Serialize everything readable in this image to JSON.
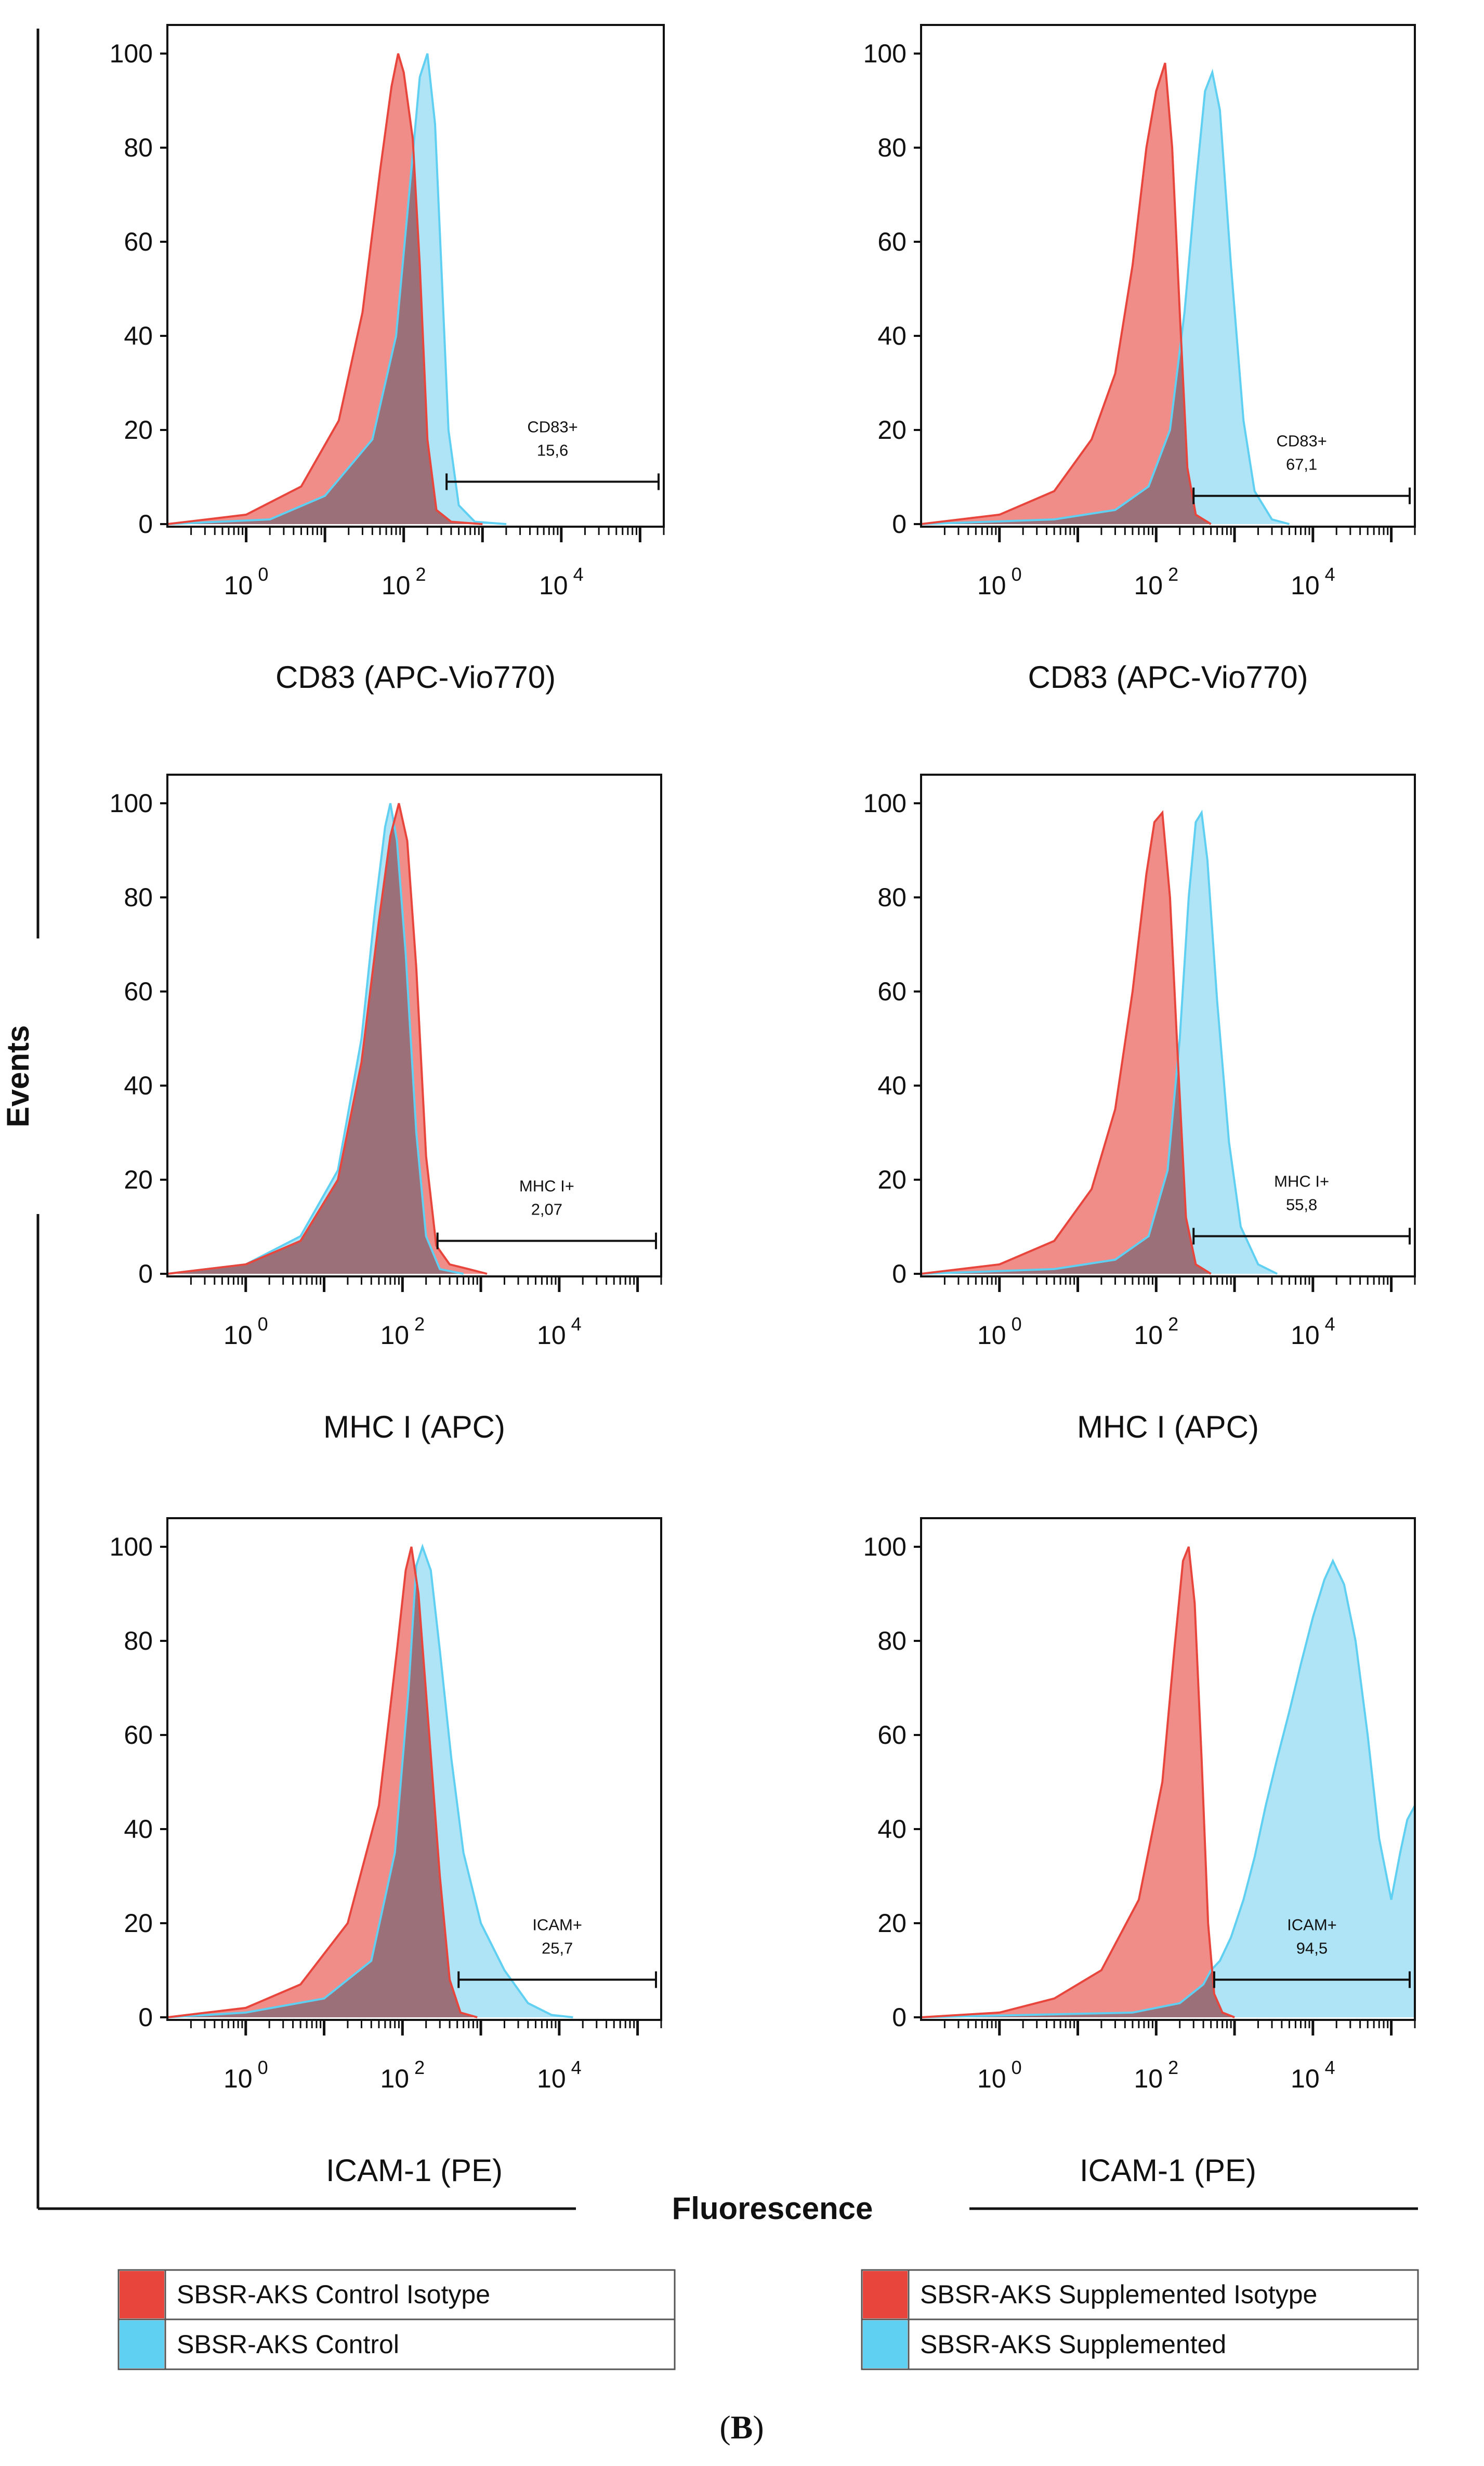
{
  "figure": {
    "y_title": "Events",
    "x_title": "Fluorescence",
    "panel_label_prefix": "(",
    "panel_label_letter": "B",
    "panel_label_suffix": ")"
  },
  "legends": [
    {
      "entries": [
        {
          "label": "SBSR-AKS Control Isotype",
          "color": "#e8453c"
        },
        {
          "label": "SBSR-AKS Control",
          "color": "#5fcff2"
        }
      ]
    },
    {
      "entries": [
        {
          "label": "SBSR-AKS Supplemented Isotype",
          "color": "#e8453c"
        },
        {
          "label": "SBSR-AKS Supplemented",
          "color": "#5fcff2"
        }
      ]
    }
  ],
  "styles": {
    "isotype_fill": "#f08d88",
    "isotype_line": "#e8453c",
    "sample_fill": "#aee4f6",
    "sample_line": "#5fcff2",
    "overlap_fill": "#9c7079"
  },
  "chart_data": [
    {
      "type": "area",
      "xlabel": "CD83 (APC-Vio770)",
      "x_scale": "log",
      "xlim": [
        0.1,
        200000
      ],
      "ylim": [
        0,
        100
      ],
      "y_ticks": [
        0,
        20,
        40,
        60,
        80,
        100
      ],
      "x_tick_bases": [
        "10",
        "10",
        "10"
      ],
      "x_tick_exponents": [
        "0",
        "2",
        "4"
      ],
      "x_tick_values": [
        1,
        100,
        10000
      ],
      "gate": {
        "label": "CD83+",
        "value": "15,6",
        "from": 350,
        "to": 200000,
        "y": 9
      },
      "series": [
        {
          "name": "SBSR-AKS Control Isotype",
          "role": "isotype",
          "points": [
            [
              0.1,
              0
            ],
            [
              1,
              2
            ],
            [
              5,
              8
            ],
            [
              15,
              22
            ],
            [
              30,
              45
            ],
            [
              50,
              75
            ],
            [
              70,
              93
            ],
            [
              85,
              100
            ],
            [
              100,
              96
            ],
            [
              130,
              82
            ],
            [
              160,
              55
            ],
            [
              200,
              18
            ],
            [
              260,
              3
            ],
            [
              400,
              0.5
            ],
            [
              1000,
              0
            ]
          ]
        },
        {
          "name": "SBSR-AKS Control",
          "role": "sample",
          "points": [
            [
              0.1,
              0
            ],
            [
              2,
              1
            ],
            [
              10,
              6
            ],
            [
              40,
              18
            ],
            [
              80,
              40
            ],
            [
              120,
              72
            ],
            [
              160,
              95
            ],
            [
              200,
              100
            ],
            [
              250,
              85
            ],
            [
              300,
              55
            ],
            [
              370,
              20
            ],
            [
              500,
              4
            ],
            [
              800,
              0.5
            ],
            [
              2000,
              0
            ]
          ]
        }
      ]
    },
    {
      "type": "area",
      "xlabel": "CD83 (APC-Vio770)",
      "x_scale": "log",
      "xlim": [
        0.1,
        200000
      ],
      "ylim": [
        0,
        100
      ],
      "y_ticks": [
        0,
        20,
        40,
        60,
        80,
        100
      ],
      "x_tick_bases": [
        "10",
        "10",
        "10"
      ],
      "x_tick_exponents": [
        "0",
        "2",
        "4"
      ],
      "x_tick_values": [
        1,
        100,
        10000
      ],
      "gate": {
        "label": "CD83+",
        "value": "67,1",
        "from": 300,
        "to": 200000,
        "y": 6
      },
      "series": [
        {
          "name": "SBSR-AKS Supplemented Isotype",
          "role": "isotype",
          "points": [
            [
              0.1,
              0
            ],
            [
              1,
              2
            ],
            [
              5,
              7
            ],
            [
              15,
              18
            ],
            [
              30,
              32
            ],
            [
              50,
              55
            ],
            [
              75,
              80
            ],
            [
              100,
              92
            ],
            [
              130,
              98
            ],
            [
              160,
              80
            ],
            [
              200,
              45
            ],
            [
              250,
              12
            ],
            [
              320,
              2
            ],
            [
              500,
              0
            ]
          ]
        },
        {
          "name": "SBSR-AKS Supplemented",
          "role": "sample",
          "points": [
            [
              0.1,
              0
            ],
            [
              5,
              1
            ],
            [
              30,
              3
            ],
            [
              80,
              8
            ],
            [
              150,
              20
            ],
            [
              230,
              45
            ],
            [
              320,
              72
            ],
            [
              420,
              92
            ],
            [
              520,
              96
            ],
            [
              650,
              88
            ],
            [
              900,
              55
            ],
            [
              1300,
              22
            ],
            [
              1800,
              7
            ],
            [
              3000,
              1
            ],
            [
              5000,
              0
            ]
          ]
        }
      ]
    },
    {
      "type": "area",
      "xlabel": "MHC I (APC)",
      "x_scale": "log",
      "xlim": [
        0.1,
        200000
      ],
      "ylim": [
        0,
        100
      ],
      "y_ticks": [
        0,
        20,
        40,
        60,
        80,
        100
      ],
      "x_tick_bases": [
        "10",
        "10",
        "10"
      ],
      "x_tick_exponents": [
        "0",
        "2",
        "4"
      ],
      "x_tick_values": [
        1,
        100,
        10000
      ],
      "gate": {
        "label": "MHC I+",
        "value": "2,07",
        "from": 280,
        "to": 200000,
        "y": 7
      },
      "series": [
        {
          "name": "SBSR-AKS Control Isotype",
          "role": "isotype",
          "points": [
            [
              0.1,
              0
            ],
            [
              1,
              2
            ],
            [
              5,
              7
            ],
            [
              15,
              20
            ],
            [
              30,
              45
            ],
            [
              50,
              75
            ],
            [
              70,
              93
            ],
            [
              90,
              100
            ],
            [
              115,
              92
            ],
            [
              150,
              65
            ],
            [
              200,
              25
            ],
            [
              270,
              6
            ],
            [
              400,
              2
            ],
            [
              700,
              1
            ],
            [
              1200,
              0
            ]
          ]
        },
        {
          "name": "SBSR-AKS Control",
          "role": "sample",
          "points": [
            [
              0.1,
              0
            ],
            [
              1,
              2
            ],
            [
              5,
              8
            ],
            [
              15,
              22
            ],
            [
              30,
              50
            ],
            [
              45,
              78
            ],
            [
              60,
              95
            ],
            [
              70,
              100
            ],
            [
              85,
              92
            ],
            [
              110,
              68
            ],
            [
              150,
              30
            ],
            [
              200,
              8
            ],
            [
              300,
              1
            ],
            [
              600,
              0
            ]
          ]
        }
      ]
    },
    {
      "type": "area",
      "xlabel": "MHC I (APC)",
      "x_scale": "log",
      "xlim": [
        0.1,
        200000
      ],
      "ylim": [
        0,
        100
      ],
      "y_ticks": [
        0,
        20,
        40,
        60,
        80,
        100
      ],
      "x_tick_bases": [
        "10",
        "10",
        "10"
      ],
      "x_tick_exponents": [
        "0",
        "2",
        "4"
      ],
      "x_tick_values": [
        1,
        100,
        10000
      ],
      "gate": {
        "label": "MHC I+",
        "value": "55,8",
        "from": 300,
        "to": 200000,
        "y": 8
      },
      "series": [
        {
          "name": "SBSR-AKS Supplemented Isotype",
          "role": "isotype",
          "points": [
            [
              0.1,
              0
            ],
            [
              1,
              2
            ],
            [
              5,
              7
            ],
            [
              15,
              18
            ],
            [
              30,
              35
            ],
            [
              50,
              60
            ],
            [
              75,
              85
            ],
            [
              95,
              96
            ],
            [
              120,
              98
            ],
            [
              150,
              80
            ],
            [
              190,
              45
            ],
            [
              240,
              12
            ],
            [
              320,
              2
            ],
            [
              500,
              0
            ]
          ]
        },
        {
          "name": "SBSR-AKS Supplemented",
          "role": "sample",
          "points": [
            [
              0.1,
              0
            ],
            [
              5,
              1
            ],
            [
              30,
              3
            ],
            [
              80,
              8
            ],
            [
              140,
              22
            ],
            [
              200,
              50
            ],
            [
              260,
              80
            ],
            [
              320,
              96
            ],
            [
              380,
              98
            ],
            [
              450,
              88
            ],
            [
              600,
              58
            ],
            [
              850,
              28
            ],
            [
              1200,
              10
            ],
            [
              2000,
              2
            ],
            [
              3500,
              0
            ]
          ]
        }
      ]
    },
    {
      "type": "area",
      "xlabel": "ICAM-1 (PE)",
      "x_scale": "log",
      "xlim": [
        0.1,
        200000
      ],
      "ylim": [
        0,
        100
      ],
      "y_ticks": [
        0,
        20,
        40,
        60,
        80,
        100
      ],
      "x_tick_bases": [
        "10",
        "10",
        "10"
      ],
      "x_tick_exponents": [
        "0",
        "2",
        "4"
      ],
      "x_tick_values": [
        1,
        100,
        10000
      ],
      "gate": {
        "label": "ICAM+",
        "value": "25,7",
        "from": 520,
        "to": 200000,
        "y": 8
      },
      "series": [
        {
          "name": "SBSR-AKS Control Isotype",
          "role": "isotype",
          "points": [
            [
              0.1,
              0
            ],
            [
              1,
              2
            ],
            [
              5,
              7
            ],
            [
              20,
              20
            ],
            [
              50,
              45
            ],
            [
              85,
              78
            ],
            [
              110,
              95
            ],
            [
              130,
              100
            ],
            [
              160,
              90
            ],
            [
              220,
              60
            ],
            [
              300,
              30
            ],
            [
              400,
              8
            ],
            [
              550,
              1
            ],
            [
              900,
              0
            ]
          ]
        },
        {
          "name": "SBSR-AKS Control",
          "role": "sample",
          "points": [
            [
              0.1,
              0
            ],
            [
              1,
              1
            ],
            [
              10,
              4
            ],
            [
              40,
              12
            ],
            [
              80,
              35
            ],
            [
              120,
              70
            ],
            [
              150,
              96
            ],
            [
              180,
              100
            ],
            [
              230,
              95
            ],
            [
              300,
              78
            ],
            [
              420,
              55
            ],
            [
              600,
              35
            ],
            [
              1000,
              20
            ],
            [
              2000,
              10
            ],
            [
              4000,
              3
            ],
            [
              8000,
              0.5
            ],
            [
              15000,
              0
            ]
          ]
        }
      ]
    },
    {
      "type": "area",
      "xlabel": "ICAM-1 (PE)",
      "x_scale": "log",
      "xlim": [
        0.1,
        200000
      ],
      "ylim": [
        0,
        100
      ],
      "y_ticks": [
        0,
        20,
        40,
        60,
        80,
        100
      ],
      "x_tick_bases": [
        "10",
        "10",
        "10"
      ],
      "x_tick_exponents": [
        "0",
        "2",
        "4"
      ],
      "x_tick_values": [
        1,
        100,
        10000
      ],
      "gate": {
        "label": "ICAM+",
        "value": "94,5",
        "from": 550,
        "to": 200000,
        "y": 8
      },
      "series": [
        {
          "name": "SBSR-AKS Supplemented Isotype",
          "role": "isotype",
          "points": [
            [
              0.1,
              0
            ],
            [
              1,
              1
            ],
            [
              5,
              4
            ],
            [
              20,
              10
            ],
            [
              60,
              25
            ],
            [
              120,
              50
            ],
            [
              170,
              78
            ],
            [
              220,
              97
            ],
            [
              260,
              100
            ],
            [
              310,
              88
            ],
            [
              380,
              55
            ],
            [
              460,
              20
            ],
            [
              550,
              5
            ],
            [
              700,
              1
            ],
            [
              1000,
              0
            ]
          ]
        },
        {
          "name": "SBSR-AKS Supplemented",
          "role": "sample",
          "points": [
            [
              0.1,
              0
            ],
            [
              50,
              1
            ],
            [
              200,
              3
            ],
            [
              400,
              7
            ],
            [
              500,
              10
            ],
            [
              650,
              12
            ],
            [
              900,
              17
            ],
            [
              1300,
              25
            ],
            [
              1800,
              34
            ],
            [
              2500,
              45
            ],
            [
              3500,
              55
            ],
            [
              5000,
              65
            ],
            [
              7000,
              75
            ],
            [
              10000,
              85
            ],
            [
              14000,
              93
            ],
            [
              18000,
              97
            ],
            [
              25000,
              92
            ],
            [
              35000,
              80
            ],
            [
              50000,
              60
            ],
            [
              70000,
              38
            ],
            [
              100000,
              25
            ],
            [
              130000,
              35
            ],
            [
              160000,
              42
            ],
            [
              200000,
              45
            ]
          ]
        }
      ]
    }
  ]
}
